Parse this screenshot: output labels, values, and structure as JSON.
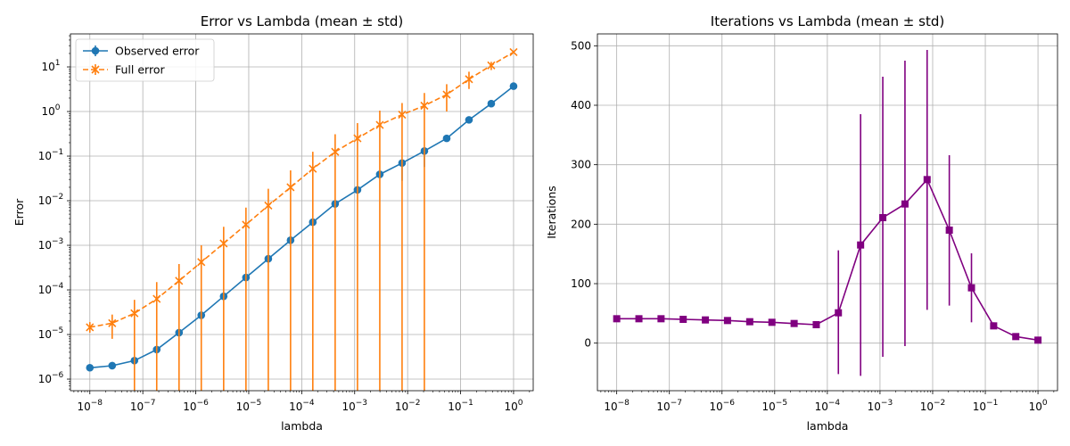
{
  "chart_data": [
    {
      "type": "line",
      "title": "Error vs Lambda (mean ± std)",
      "xlabel": "lambda",
      "ylabel": "Error",
      "xscale": "log",
      "yscale": "log",
      "xlim": [
        4.3e-09,
        2.35
      ],
      "ylim": [
        5.5e-07,
        55
      ],
      "grid": true,
      "legend": "top-left",
      "x": [
        1e-08,
        2.64e-08,
        6.95e-08,
        1.83e-07,
        4.83e-07,
        1.27e-06,
        3.36e-06,
        8.86e-06,
        2.34e-05,
        6.16e-05,
        0.000162,
        0.000428,
        0.00113,
        0.00298,
        0.00785,
        0.0207,
        0.0546,
        0.144,
        0.379,
        1.0
      ],
      "series": [
        {
          "name": "Observed error",
          "color": "#1f77b4",
          "style": "solid",
          "marker": "circle",
          "values": [
            1.8e-06,
            2e-06,
            2.6e-06,
            4.6e-06,
            1.1e-05,
            2.7e-05,
            7.2e-05,
            0.00019,
            0.0005,
            0.0013,
            0.0033,
            0.0085,
            0.0175,
            0.039,
            0.07,
            0.13,
            0.25,
            0.65,
            1.5,
            3.7
          ],
          "err_low": [
            null,
            null,
            null,
            null,
            null,
            null,
            null,
            null,
            null,
            null,
            null,
            null,
            null,
            null,
            0.028,
            0.057,
            null,
            null,
            null,
            null
          ],
          "err_high": [
            null,
            null,
            null,
            null,
            null,
            null,
            null,
            null,
            null,
            null,
            null,
            null,
            null,
            null,
            null,
            null,
            null,
            null,
            null,
            null
          ]
        },
        {
          "name": "Full error",
          "color": "#ff7f0e",
          "style": "dashed",
          "marker": "x",
          "values": [
            1.45e-05,
            1.8e-05,
            3e-05,
            6.3e-05,
            0.00016,
            0.00042,
            0.0011,
            0.0029,
            0.0078,
            0.02,
            0.052,
            0.125,
            0.25,
            0.5,
            0.85,
            1.35,
            2.4,
            5.3,
            10.8,
            21.5
          ],
          "err_low": [
            1.1e-05,
            8e-06,
            5e-07,
            5e-07,
            5e-07,
            5e-07,
            5e-07,
            5e-07,
            5e-07,
            5e-07,
            5e-07,
            5e-07,
            5e-07,
            5e-07,
            5e-07,
            5e-07,
            1.0,
            3.2,
            8.5,
            20.5
          ],
          "err_high": [
            1.9e-05,
            2.8e-05,
            6e-05,
            0.00015,
            0.00038,
            0.001,
            0.0026,
            0.007,
            0.0185,
            0.048,
            0.125,
            0.31,
            0.55,
            1.05,
            1.55,
            2.6,
            4.1,
            7.8,
            13.0,
            22.5
          ]
        }
      ]
    },
    {
      "type": "line",
      "title": "Iterations vs Lambda (mean ± std)",
      "xlabel": "lambda",
      "ylabel": "Iterations",
      "xscale": "log",
      "yscale": "linear",
      "xlim": [
        4.3e-09,
        2.35
      ],
      "ylim": [
        -80,
        520
      ],
      "yticks": [
        0,
        100,
        200,
        300,
        400,
        500
      ],
      "grid": true,
      "x": [
        1e-08,
        2.64e-08,
        6.95e-08,
        1.83e-07,
        4.83e-07,
        1.27e-06,
        3.36e-06,
        8.86e-06,
        2.34e-05,
        6.16e-05,
        0.000162,
        0.000428,
        0.00113,
        0.00298,
        0.00785,
        0.0207,
        0.0546,
        0.144,
        0.379,
        1.0
      ],
      "series": [
        {
          "color": "#800080",
          "style": "solid",
          "marker": "square",
          "values": [
            41,
            41,
            41,
            40,
            39,
            38,
            36,
            35,
            33,
            31,
            51,
            165,
            211,
            234,
            275,
            190,
            93,
            29,
            11,
            5
          ],
          "err_low": [
            null,
            null,
            null,
            null,
            null,
            null,
            null,
            null,
            null,
            null,
            -52,
            -55,
            -23,
            -5,
            56,
            63,
            35,
            25,
            null,
            null
          ],
          "err_high": [
            null,
            null,
            null,
            null,
            null,
            null,
            null,
            null,
            null,
            null,
            156,
            385,
            448,
            475,
            493,
            316,
            151,
            35,
            null,
            null
          ]
        }
      ]
    }
  ]
}
